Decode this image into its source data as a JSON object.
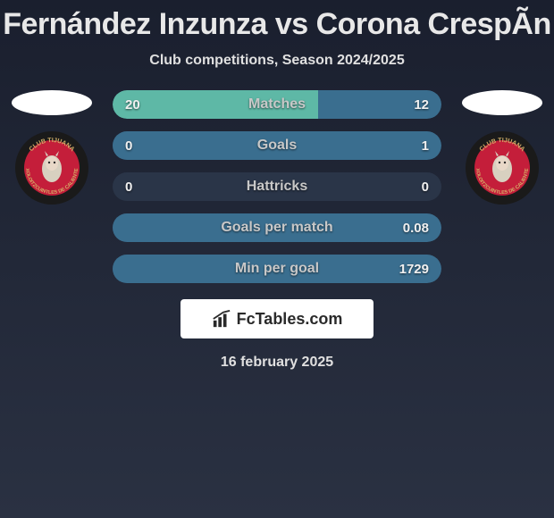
{
  "title": "Fernández Inzunza vs Corona CrespÃ­n",
  "subtitle": "Club competitions, Season 2024/2025",
  "date": "16 february 2025",
  "branding": {
    "text": "FcTables.com"
  },
  "colors": {
    "bar_left": "#5eb8a6",
    "bar_right": "#3a6e8f",
    "bar_bg_dark": "#2a3548",
    "club_red": "#c41e3a"
  },
  "stats": [
    {
      "label": "Matches",
      "left_value": "20",
      "right_value": "12",
      "left_pct": 62.5,
      "right_pct": 37.5
    },
    {
      "label": "Goals",
      "left_value": "0",
      "right_value": "1",
      "left_pct": 0,
      "right_pct": 100
    },
    {
      "label": "Hattricks",
      "left_value": "0",
      "right_value": "0",
      "left_pct": 0,
      "right_pct": 0
    },
    {
      "label": "Goals per match",
      "left_value": "",
      "right_value": "0.08",
      "left_pct": 0,
      "right_pct": 100
    },
    {
      "label": "Min per goal",
      "left_value": "",
      "right_value": "1729",
      "left_pct": 0,
      "right_pct": 100
    }
  ]
}
